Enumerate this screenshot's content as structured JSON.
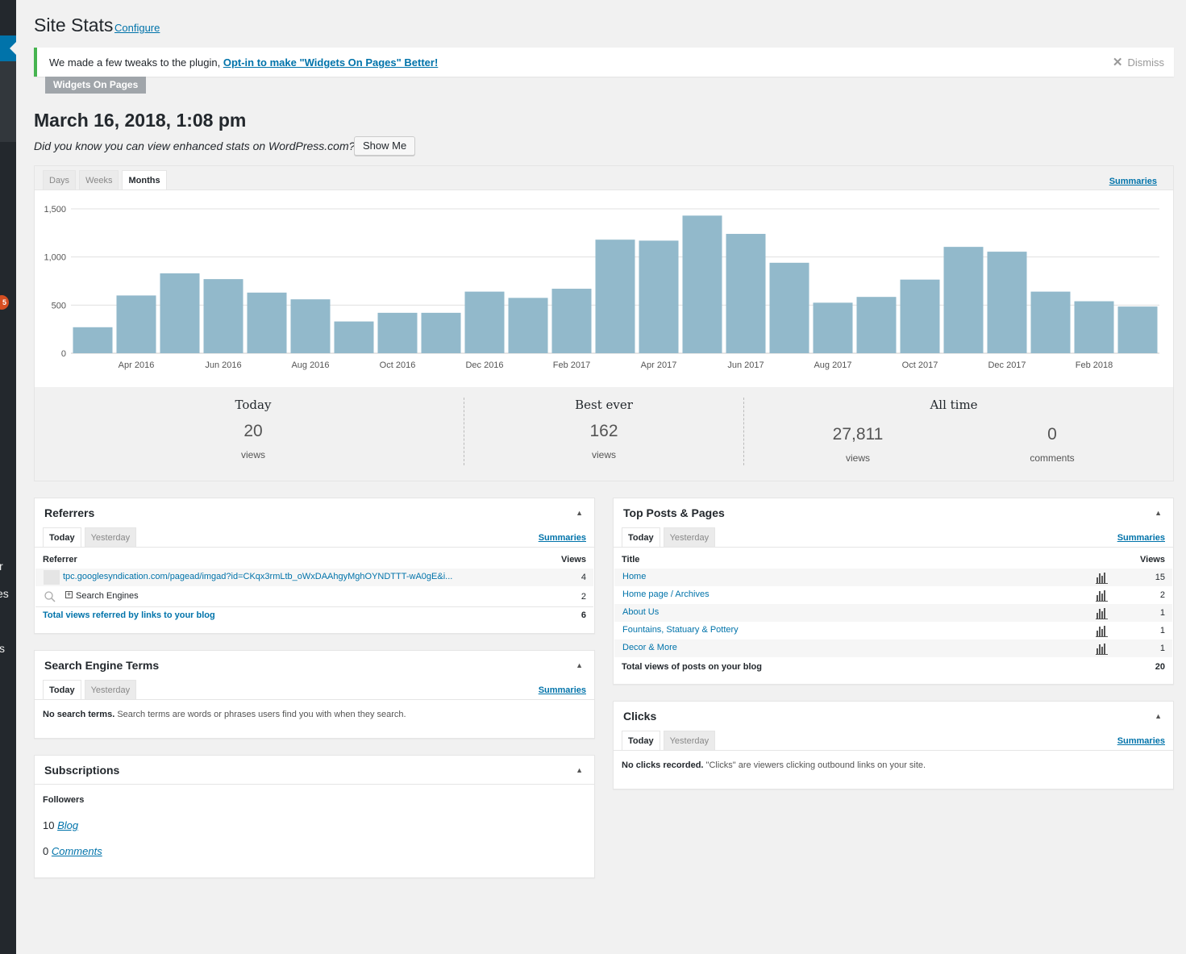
{
  "page": {
    "title": "Site Stats",
    "configure": "Configure",
    "date": "March 16, 2018, 1:08 pm",
    "enhanced_text": "Did you know you can view enhanced stats on WordPress.com?",
    "show_me": "Show Me"
  },
  "sidebar": {
    "badge": "5",
    "fragments": [
      "r",
      "es",
      "s"
    ]
  },
  "notice": {
    "text": "We made a few tweaks to the plugin, ",
    "link": "Opt-in to make \"Widgets On Pages\" Better!",
    "dismiss": "Dismiss",
    "plugin_tag": "Widgets On Pages"
  },
  "chart_tabs": {
    "days": "Days",
    "weeks": "Weeks",
    "months": "Months",
    "summaries": "Summaries"
  },
  "chart_data": {
    "type": "bar",
    "categories": [
      "Mar 2016",
      "Apr 2016",
      "May 2016",
      "Jun 2016",
      "Jul 2016",
      "Aug 2016",
      "Sep 2016",
      "Oct 2016",
      "Nov 2016",
      "Dec 2016",
      "Jan 2017",
      "Feb 2017",
      "Mar 2017",
      "Apr 2017",
      "May 2017",
      "Jun 2017",
      "Jul 2017",
      "Aug 2017",
      "Sep 2017",
      "Oct 2017",
      "Nov 2017",
      "Dec 2017",
      "Jan 2018",
      "Feb 2018",
      "Mar 2018"
    ],
    "values": [
      270,
      600,
      830,
      770,
      630,
      560,
      330,
      420,
      420,
      640,
      575,
      670,
      1180,
      1170,
      1430,
      1240,
      940,
      525,
      585,
      765,
      1105,
      1055,
      640,
      540,
      485
    ],
    "x_tick_labels": [
      "Apr 2016",
      "Jun 2016",
      "Aug 2016",
      "Oct 2016",
      "Dec 2016",
      "Feb 2017",
      "Apr 2017",
      "Jun 2017",
      "Aug 2017",
      "Oct 2017",
      "Dec 2017",
      "Feb 2018"
    ],
    "y_tick_labels": [
      "0",
      "500",
      "1,000",
      "1,500"
    ],
    "ylim": [
      0,
      1500
    ],
    "color": "#92b9cb",
    "grid": true
  },
  "summary": {
    "today": {
      "heading": "Today",
      "value": "20",
      "unit": "views"
    },
    "best": {
      "heading": "Best ever",
      "value": "162",
      "unit": "views"
    },
    "alltime": {
      "heading": "All time",
      "views_value": "27,811",
      "views_unit": "views",
      "comments_value": "0",
      "comments_unit": "comments"
    }
  },
  "tabs": {
    "today": "Today",
    "yesterday": "Yesterday",
    "summaries": "Summaries"
  },
  "referrers": {
    "title": "Referrers",
    "col_referrer": "Referrer",
    "col_views": "Views",
    "rows": [
      {
        "label": "tpc.googlesyndication.com/pagead/imgad?id=CKqx3rmLtb_oWxDAAhgyMghOYNDTTT-wA0gE&i...",
        "views": "4"
      },
      {
        "label": "Search Engines",
        "views": "2"
      }
    ],
    "total_label": "Total views referred by links to your blog",
    "total": "6"
  },
  "search_terms": {
    "title": "Search Engine Terms",
    "empty_bold": "No search terms.",
    "empty_text": " Search terms are words or phrases users find you with when they search."
  },
  "subscriptions": {
    "title": "Subscriptions",
    "followers": "Followers",
    "blog_count": "10",
    "blog_label": "Blog",
    "comments_count": "0",
    "comments_label": "Comments"
  },
  "top_posts": {
    "title": "Top Posts & Pages",
    "col_title": "Title",
    "col_views": "Views",
    "rows": [
      {
        "label": "Home",
        "views": "15"
      },
      {
        "label": "Home page / Archives",
        "views": "2"
      },
      {
        "label": "About Us",
        "views": "1"
      },
      {
        "label": "Fountains, Statuary & Pottery",
        "views": "1"
      },
      {
        "label": "Decor & More",
        "views": "1"
      }
    ],
    "total_label": "Total views of posts on your blog",
    "total": "20"
  },
  "clicks": {
    "title": "Clicks",
    "empty_bold": "No clicks recorded.",
    "empty_text": " \"Clicks\" are viewers clicking outbound links on your site."
  }
}
